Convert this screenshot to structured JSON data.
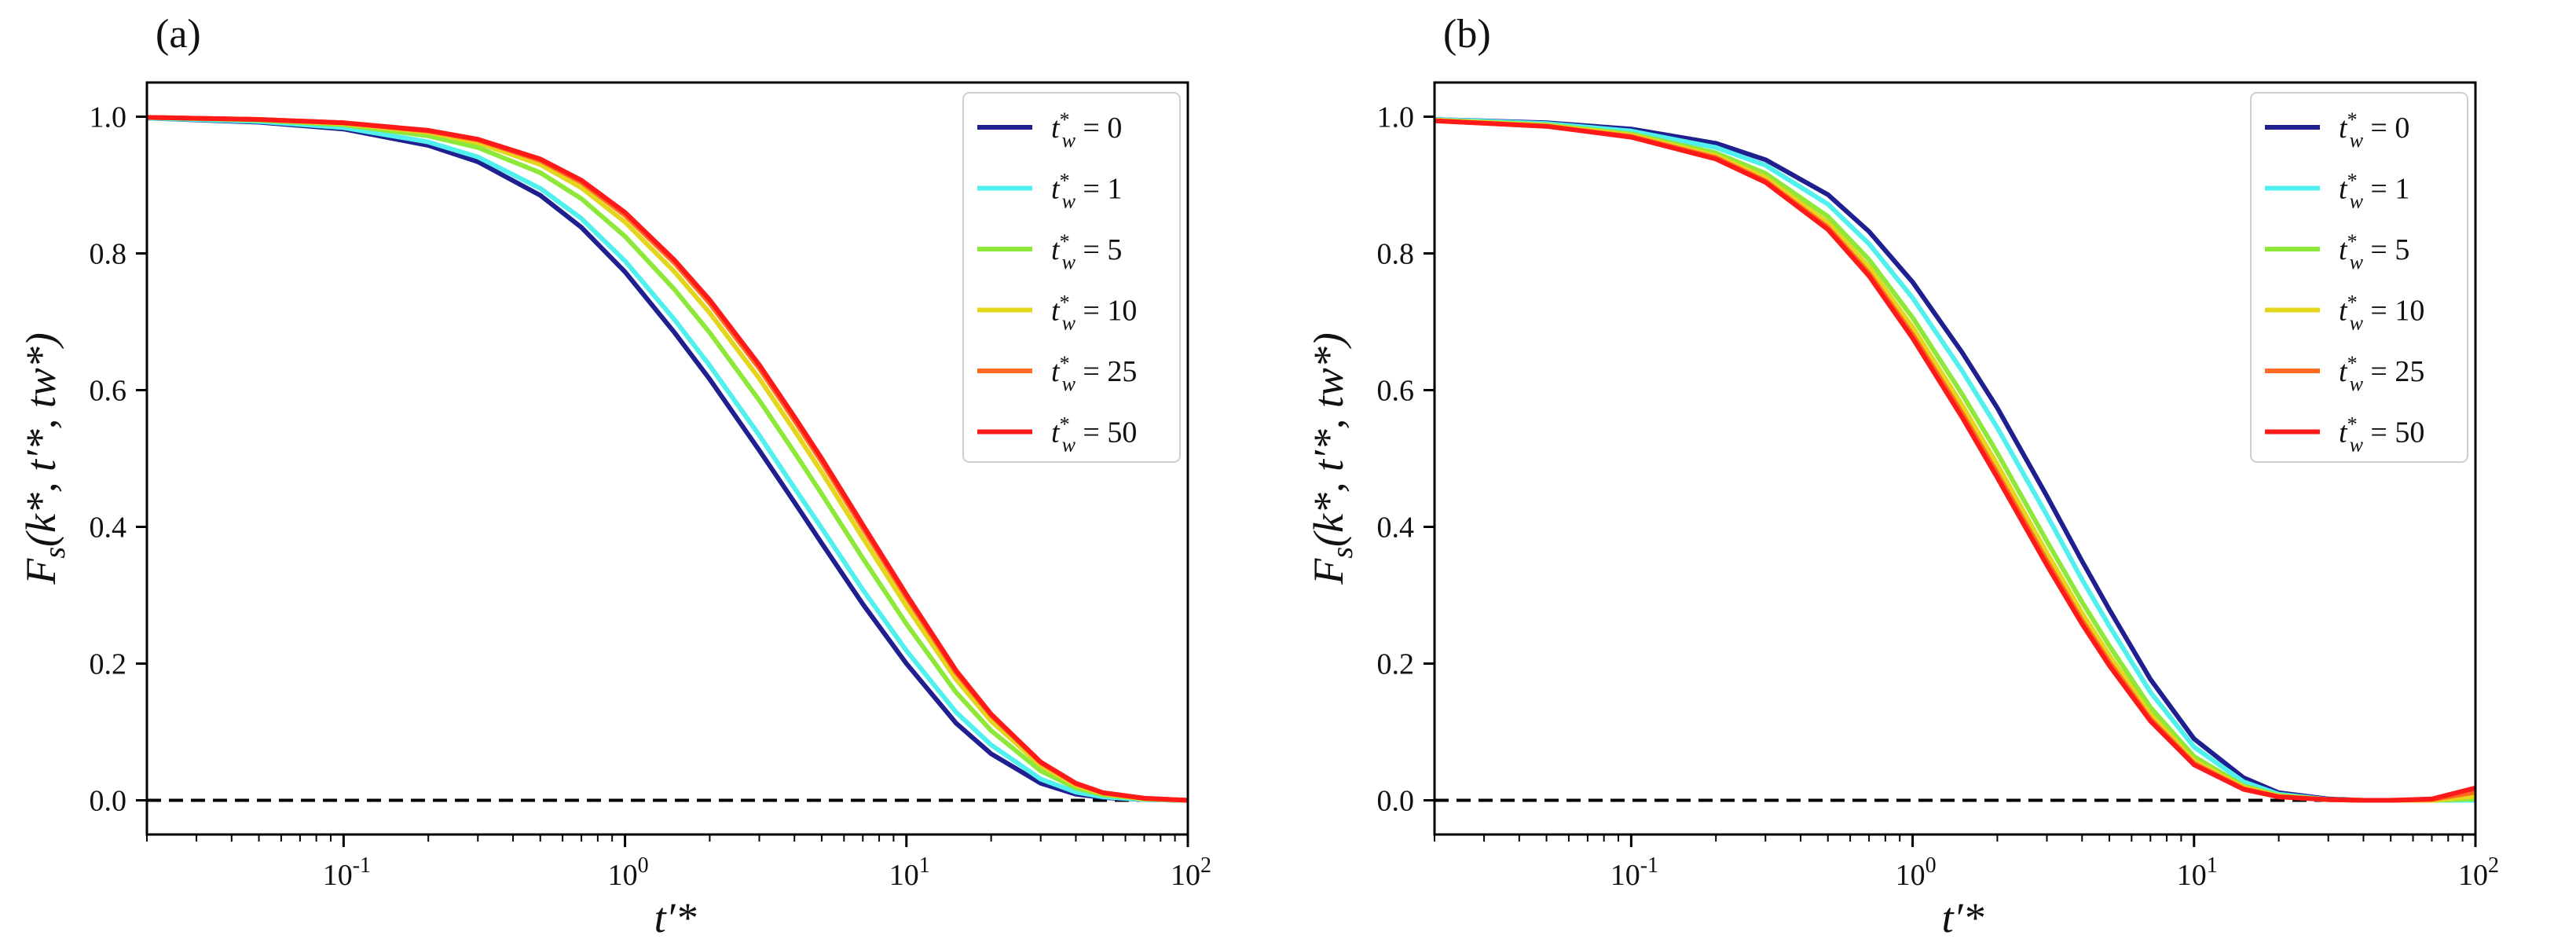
{
  "chart_data": [
    {
      "type": "line",
      "panel_label": "(a)",
      "xlabel": "t′*",
      "ylabel": "F_s(k*, t′*, t_w*)",
      "xscale": "log",
      "xlim": [
        0.02,
        100
      ],
      "ylim": [
        -0.05,
        1.05
      ],
      "xticks": [
        0.1,
        1,
        10,
        100
      ],
      "xtick_labels": [
        {
          "base": "10",
          "exp": "-1"
        },
        {
          "base": "10",
          "exp": "0"
        },
        {
          "base": "10",
          "exp": "1"
        },
        {
          "base": "10",
          "exp": "2"
        }
      ],
      "yticks": [
        0.0,
        0.2,
        0.4,
        0.6,
        0.8,
        1.0
      ],
      "ytick_labels": [
        "0.0",
        "0.2",
        "0.4",
        "0.6",
        "0.8",
        "1.0"
      ],
      "legend_position": "top-right",
      "reference_line": {
        "y": 0.0,
        "style": "dashed",
        "color": "#000000"
      },
      "series": [
        {
          "name": "t_w* = 0",
          "tw": "0",
          "color": "#1f1f8f",
          "x": [
            0.02,
            0.05,
            0.1,
            0.2,
            0.3,
            0.5,
            0.7,
            1,
            1.5,
            2,
            3,
            4,
            5,
            7,
            10,
            15,
            20,
            30,
            40,
            50,
            70,
            100
          ],
          "y": [
            0.998,
            0.992,
            0.982,
            0.958,
            0.934,
            0.885,
            0.838,
            0.773,
            0.684,
            0.616,
            0.512,
            0.436,
            0.376,
            0.287,
            0.2,
            0.113,
            0.068,
            0.025,
            0.009,
            0.004,
            0.001,
            0.0
          ]
        },
        {
          "name": "t_w* = 1",
          "tw": "1",
          "color": "#4ff0ee",
          "x": [
            0.02,
            0.05,
            0.1,
            0.2,
            0.3,
            0.5,
            0.7,
            1,
            1.5,
            2,
            3,
            4,
            5,
            7,
            10,
            15,
            20,
            30,
            40,
            50,
            70,
            100
          ],
          "y": [
            0.998,
            0.993,
            0.984,
            0.963,
            0.941,
            0.895,
            0.851,
            0.789,
            0.703,
            0.636,
            0.534,
            0.457,
            0.398,
            0.308,
            0.219,
            0.129,
            0.081,
            0.031,
            0.012,
            0.005,
            0.001,
            0.0
          ]
        },
        {
          "name": "t_w* = 5",
          "tw": "5",
          "color": "#8ee83a",
          "x": [
            0.02,
            0.05,
            0.1,
            0.2,
            0.3,
            0.5,
            0.7,
            1,
            1.5,
            2,
            3,
            4,
            5,
            7,
            10,
            15,
            20,
            30,
            40,
            50,
            70,
            100
          ],
          "y": [
            0.999,
            0.995,
            0.988,
            0.972,
            0.955,
            0.918,
            0.88,
            0.825,
            0.747,
            0.684,
            0.585,
            0.509,
            0.448,
            0.354,
            0.258,
            0.158,
            0.102,
            0.043,
            0.018,
            0.008,
            0.002,
            0.0
          ]
        },
        {
          "name": "t_w* = 10",
          "tw": "10",
          "color": "#e4d51d",
          "x": [
            0.02,
            0.05,
            0.1,
            0.2,
            0.3,
            0.5,
            0.7,
            1,
            1.5,
            2,
            3,
            4,
            5,
            7,
            10,
            15,
            20,
            30,
            40,
            50,
            70,
            100
          ],
          "y": [
            0.999,
            0.996,
            0.99,
            0.977,
            0.962,
            0.93,
            0.896,
            0.846,
            0.773,
            0.713,
            0.617,
            0.541,
            0.48,
            0.384,
            0.284,
            0.177,
            0.116,
            0.051,
            0.022,
            0.01,
            0.002,
            0.0
          ]
        },
        {
          "name": "t_w* = 25",
          "tw": "25",
          "color": "#ff6a20",
          "x": [
            0.02,
            0.05,
            0.1,
            0.2,
            0.3,
            0.5,
            0.7,
            1,
            1.5,
            2,
            3,
            4,
            5,
            7,
            10,
            15,
            20,
            30,
            40,
            50,
            70,
            100
          ],
          "y": [
            0.999,
            0.996,
            0.991,
            0.979,
            0.966,
            0.936,
            0.904,
            0.856,
            0.786,
            0.727,
            0.632,
            0.556,
            0.495,
            0.398,
            0.297,
            0.187,
            0.124,
            0.055,
            0.024,
            0.011,
            0.003,
            0.0
          ]
        },
        {
          "name": "t_w* = 50",
          "tw": "50",
          "color": "#ff1a1a",
          "x": [
            0.02,
            0.05,
            0.1,
            0.2,
            0.3,
            0.5,
            0.7,
            1,
            1.5,
            2,
            3,
            4,
            5,
            7,
            10,
            15,
            20,
            30,
            40,
            50,
            70,
            100
          ],
          "y": [
            0.999,
            0.996,
            0.991,
            0.98,
            0.967,
            0.938,
            0.907,
            0.86,
            0.79,
            0.732,
            0.637,
            0.561,
            0.5,
            0.403,
            0.301,
            0.19,
            0.126,
            0.056,
            0.025,
            0.011,
            0.003,
            0.0
          ]
        }
      ]
    },
    {
      "type": "line",
      "panel_label": "(b)",
      "xlabel": "t′*",
      "ylabel": "F_s(k*, t′*, t_w*)",
      "xscale": "log",
      "xlim": [
        0.02,
        100
      ],
      "ylim": [
        -0.05,
        1.05
      ],
      "xticks": [
        0.1,
        1,
        10,
        100
      ],
      "xtick_labels": [
        {
          "base": "10",
          "exp": "-1"
        },
        {
          "base": "10",
          "exp": "0"
        },
        {
          "base": "10",
          "exp": "1"
        },
        {
          "base": "10",
          "exp": "2"
        }
      ],
      "yticks": [
        0.0,
        0.2,
        0.4,
        0.6,
        0.8,
        1.0
      ],
      "ytick_labels": [
        "0.0",
        "0.2",
        "0.4",
        "0.6",
        "0.8",
        "1.0"
      ],
      "legend_position": "top-right",
      "reference_line": {
        "y": 0.0,
        "style": "dashed",
        "color": "#000000"
      },
      "series": [
        {
          "name": "t_w* = 0",
          "tw": "0",
          "color": "#1f1f8f",
          "x": [
            0.02,
            0.05,
            0.1,
            0.2,
            0.3,
            0.5,
            0.7,
            1,
            1.5,
            2,
            3,
            4,
            5,
            7,
            10,
            15,
            20,
            30,
            40,
            50,
            70,
            100
          ],
          "y": [
            0.996,
            0.991,
            0.982,
            0.961,
            0.937,
            0.886,
            0.832,
            0.758,
            0.655,
            0.574,
            0.445,
            0.35,
            0.279,
            0.177,
            0.09,
            0.033,
            0.011,
            0.002,
            0.0,
            0.0,
            0.0,
            0.0
          ]
        },
        {
          "name": "t_w* = 1",
          "tw": "1",
          "color": "#4ff0ee",
          "x": [
            0.02,
            0.05,
            0.1,
            0.2,
            0.3,
            0.5,
            0.7,
            1,
            1.5,
            2,
            3,
            4,
            5,
            7,
            10,
            15,
            20,
            30,
            40,
            50,
            70,
            100
          ],
          "y": [
            0.996,
            0.99,
            0.979,
            0.955,
            0.929,
            0.872,
            0.814,
            0.735,
            0.628,
            0.545,
            0.417,
            0.323,
            0.255,
            0.158,
            0.078,
            0.027,
            0.009,
            0.001,
            0.0,
            0.0,
            0.0,
            0.0
          ]
        },
        {
          "name": "t_w* = 5",
          "tw": "5",
          "color": "#8ee83a",
          "x": [
            0.02,
            0.05,
            0.1,
            0.2,
            0.3,
            0.5,
            0.7,
            1,
            1.5,
            2,
            3,
            4,
            5,
            7,
            10,
            15,
            20,
            30,
            40,
            50,
            70,
            100
          ],
          "y": [
            0.995,
            0.988,
            0.975,
            0.947,
            0.917,
            0.854,
            0.791,
            0.706,
            0.594,
            0.508,
            0.379,
            0.29,
            0.226,
            0.136,
            0.064,
            0.021,
            0.007,
            0.001,
            0.0,
            0.0,
            0.0,
            0.002
          ]
        },
        {
          "name": "t_w* = 10",
          "tw": "10",
          "color": "#e4d51d",
          "x": [
            0.02,
            0.05,
            0.1,
            0.2,
            0.3,
            0.5,
            0.7,
            1,
            1.5,
            2,
            3,
            4,
            5,
            7,
            10,
            15,
            20,
            30,
            40,
            50,
            70,
            100
          ],
          "y": [
            0.995,
            0.987,
            0.973,
            0.943,
            0.911,
            0.845,
            0.78,
            0.692,
            0.578,
            0.491,
            0.362,
            0.274,
            0.212,
            0.126,
            0.058,
            0.019,
            0.006,
            0.001,
            0.0,
            0.0,
            0.0,
            0.006
          ]
        },
        {
          "name": "t_w* = 25",
          "tw": "25",
          "color": "#ff6a20",
          "x": [
            0.02,
            0.05,
            0.1,
            0.2,
            0.3,
            0.5,
            0.7,
            1,
            1.5,
            2,
            3,
            4,
            5,
            7,
            10,
            15,
            20,
            30,
            40,
            50,
            70,
            100
          ],
          "y": [
            0.994,
            0.986,
            0.971,
            0.94,
            0.906,
            0.838,
            0.771,
            0.681,
            0.566,
            0.478,
            0.35,
            0.263,
            0.202,
            0.119,
            0.054,
            0.017,
            0.005,
            0.001,
            0.0,
            0.0,
            0.001,
            0.012
          ]
        },
        {
          "name": "t_w* = 50",
          "tw": "50",
          "color": "#ff1a1a",
          "x": [
            0.02,
            0.05,
            0.1,
            0.2,
            0.3,
            0.5,
            0.7,
            1,
            1.5,
            2,
            3,
            4,
            5,
            7,
            10,
            15,
            20,
            30,
            40,
            50,
            70,
            100
          ],
          "y": [
            0.994,
            0.986,
            0.97,
            0.938,
            0.904,
            0.835,
            0.767,
            0.676,
            0.56,
            0.472,
            0.344,
            0.258,
            0.197,
            0.116,
            0.052,
            0.016,
            0.005,
            0.001,
            0.0,
            0.0,
            0.002,
            0.018
          ]
        }
      ]
    }
  ]
}
